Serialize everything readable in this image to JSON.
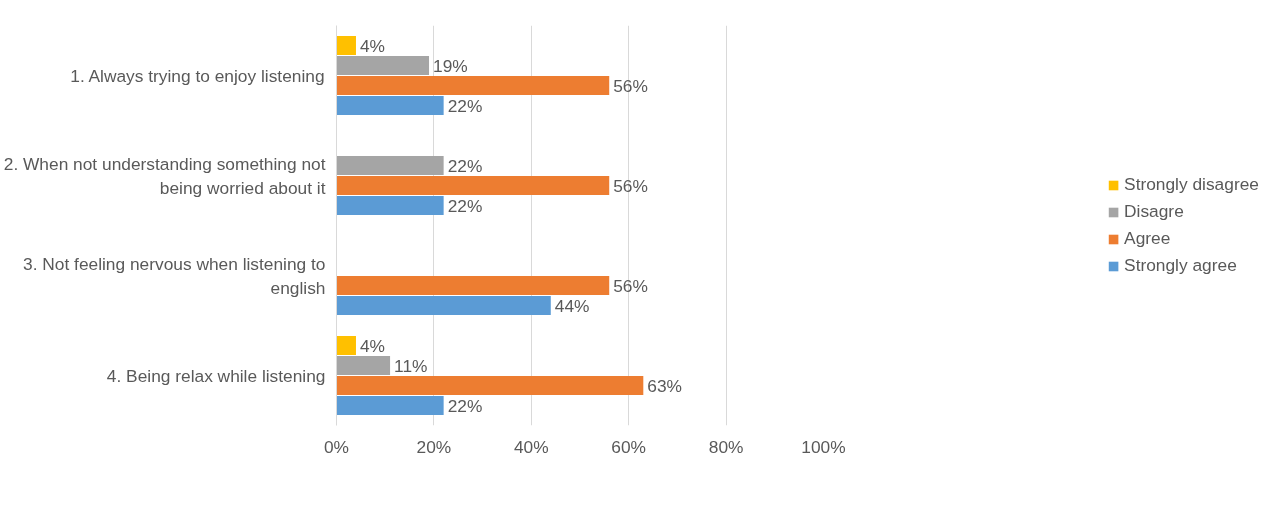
{
  "chart_data": {
    "type": "bar",
    "orientation": "horizontal",
    "categories": [
      "1. Always trying to enjoy listening",
      "2. When not understanding something not being worried about it",
      "3. Not feeling nervous when listening to english",
      "4. Being relax while listening"
    ],
    "series": [
      {
        "name": "Strongly disagree",
        "color": "#ffc000",
        "values": [
          4,
          null,
          null,
          4
        ],
        "value_labels": [
          "4%",
          null,
          null,
          "4%"
        ]
      },
      {
        "name": "Disagre",
        "color": "#a5a5a5",
        "values": [
          19,
          22,
          null,
          11
        ],
        "value_labels": [
          "19%",
          "22%",
          null,
          "11%"
        ]
      },
      {
        "name": "Agree",
        "color": "#ed7d31",
        "values": [
          56,
          56,
          56,
          63
        ],
        "value_labels": [
          "56%",
          "56%",
          "56%",
          "63%"
        ]
      },
      {
        "name": "Strongly agree",
        "color": "#5b9bd5",
        "values": [
          22,
          22,
          44,
          22
        ],
        "value_labels": [
          "22%",
          "22%",
          "44%",
          "22%"
        ]
      }
    ],
    "xlim": [
      0,
      100
    ],
    "xticks": [
      {
        "value": 0,
        "label": "0%"
      },
      {
        "value": 20,
        "label": "20%"
      },
      {
        "value": 40,
        "label": "40%"
      },
      {
        "value": 60,
        "label": "60%"
      },
      {
        "value": 80,
        "label": "80%"
      },
      {
        "value": 100,
        "label": "100%"
      }
    ],
    "grid": "x",
    "legend": "right"
  }
}
